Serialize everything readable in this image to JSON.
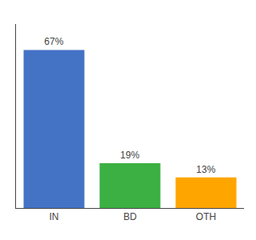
{
  "chart_data": {
    "type": "bar",
    "categories": [
      "IN",
      "BD",
      "OTH"
    ],
    "values": [
      67,
      19,
      13
    ],
    "value_labels": [
      "67%",
      "19%",
      "13%"
    ],
    "colors": [
      "#4472C4",
      "#3CB043",
      "#FFA500"
    ],
    "ylim": [
      0,
      78
    ],
    "data_labels": true,
    "tick_labels": "x",
    "grid": false
  }
}
